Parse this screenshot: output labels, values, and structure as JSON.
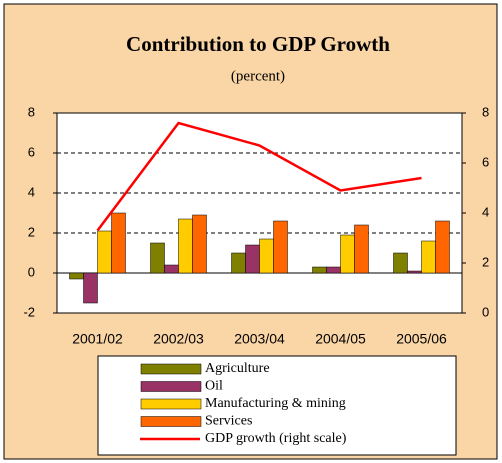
{
  "chart_data": {
    "type": "bar",
    "title": "Contribution to GDP Growth",
    "subtitle": "(percent)",
    "categories": [
      "2001/02",
      "2002/03",
      "2003/04",
      "2004/05",
      "2005/06"
    ],
    "series": [
      {
        "name": "Agriculture",
        "color": "#808000",
        "values": [
          -0.3,
          1.5,
          1.0,
          0.3,
          1.0
        ]
      },
      {
        "name": "Oil",
        "color": "#993366",
        "values": [
          -1.5,
          0.4,
          1.4,
          0.3,
          0.1
        ]
      },
      {
        "name": "Manufacturing & mining",
        "color": "#FFCC00",
        "values": [
          2.1,
          2.7,
          1.7,
          1.9,
          1.6
        ]
      },
      {
        "name": "Services",
        "color": "#FF6600",
        "values": [
          3.0,
          2.9,
          2.6,
          2.4,
          2.6
        ]
      },
      {
        "name": "GDP growth (right scale)",
        "color": "#FF0000",
        "type": "line",
        "axis": "y2",
        "values": [
          3.3,
          7.6,
          6.7,
          4.9,
          5.4
        ]
      }
    ],
    "ylim": [
      -2,
      8
    ],
    "yticks": [
      -2,
      0,
      2,
      4,
      6,
      8
    ],
    "y2lim": [
      0,
      8
    ],
    "y2ticks": [
      0,
      2,
      4,
      6,
      8
    ],
    "grid": true
  }
}
